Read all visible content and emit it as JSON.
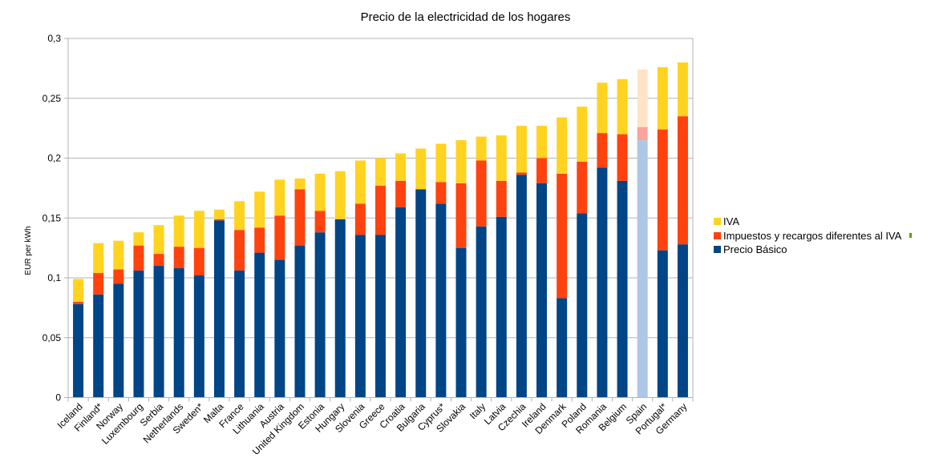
{
  "chart_data": {
    "type": "bar",
    "stacked": true,
    "title": "Precio de la electricidad de los hogares",
    "xlabel": "",
    "ylabel": "EUR per kWh",
    "ylim": [
      0,
      0.3
    ],
    "yticks": [
      "0",
      "0,05",
      "0,1",
      "0,15",
      "0,2",
      "0,25",
      "0,3"
    ],
    "ytick_values": [
      0,
      0.05,
      0.1,
      0.15,
      0.2,
      0.25,
      0.3
    ],
    "grid": true,
    "legend_position": "right",
    "categories": [
      "Iceland",
      "Finland*",
      "Norway",
      "Luxembourg",
      "Serbia",
      "Netherlands",
      "Sweden*",
      "Malta",
      "France",
      "Lithuania",
      "Austria",
      "United Kingdom",
      "Estonia",
      "Hungary",
      "Slovenia",
      "Greece",
      "Croatia",
      "Bulgaria",
      "Cyprus*",
      "Slovakia",
      "Italy",
      "Latvia",
      "Czechia",
      "Ireland",
      "Denmark",
      "Poland",
      "Romania",
      "Belgium",
      "Spain",
      "Portugal*",
      "Germany"
    ],
    "highlight_category": "Spain",
    "series": [
      {
        "name": "Precio Básico",
        "color": "#004586",
        "highlight_color": "#aec7e6",
        "values": [
          0.078,
          0.086,
          0.095,
          0.106,
          0.11,
          0.108,
          0.102,
          0.148,
          0.106,
          0.121,
          0.115,
          0.127,
          0.138,
          0.149,
          0.136,
          0.136,
          0.159,
          0.174,
          0.162,
          0.125,
          0.143,
          0.151,
          0.186,
          0.179,
          0.083,
          0.154,
          0.192,
          0.181,
          0.215,
          0.123,
          0.128
        ]
      },
      {
        "name": "Impuestos y recargos diferentes al IVA",
        "color": "#ff420e",
        "highlight_color": "#f8a49c",
        "values": [
          0.002,
          0.018,
          0.012,
          0.021,
          0.01,
          0.018,
          0.023,
          0.001,
          0.034,
          0.021,
          0.037,
          0.047,
          0.018,
          0.0,
          0.026,
          0.041,
          0.022,
          0.0,
          0.018,
          0.054,
          0.055,
          0.03,
          0.002,
          0.021,
          0.104,
          0.043,
          0.029,
          0.039,
          0.011,
          0.101,
          0.107
        ]
      },
      {
        "name": "IVA",
        "color": "#ffd320",
        "highlight_color": "#ffe3c8",
        "values": [
          0.019,
          0.025,
          0.024,
          0.011,
          0.024,
          0.026,
          0.031,
          0.008,
          0.024,
          0.03,
          0.03,
          0.009,
          0.031,
          0.04,
          0.036,
          0.023,
          0.023,
          0.034,
          0.032,
          0.036,
          0.02,
          0.038,
          0.039,
          0.027,
          0.047,
          0.046,
          0.042,
          0.046,
          0.048,
          0.052,
          0.045
        ]
      }
    ],
    "legend": [
      {
        "label": "IVA",
        "color": "#ffd320"
      },
      {
        "label": "Impuestos y recargos diferentes al IVA",
        "color": "#ff420e"
      },
      {
        "label": "Precio Básico",
        "color": "#004586"
      }
    ]
  }
}
